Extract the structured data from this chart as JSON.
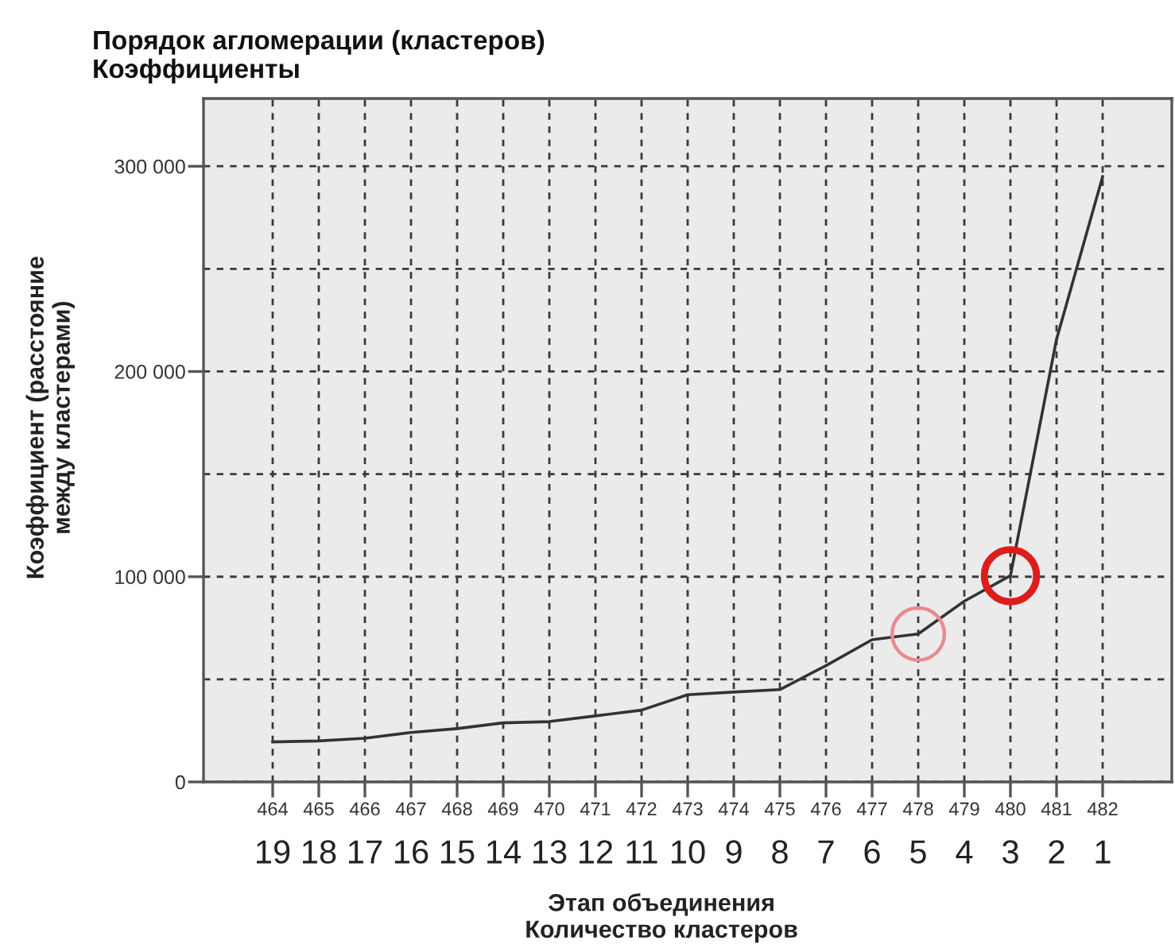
{
  "chart_data": {
    "type": "line",
    "title": "Порядок агломерации (кластеров)",
    "subtitle": "Коэффициенты",
    "xlabel": "Этап объединения",
    "x2label": "Количество кластеров",
    "ylabel": "Коэффициент (расстояние\nмежду кластерами)",
    "x": [
      464,
      465,
      466,
      467,
      468,
      469,
      470,
      471,
      472,
      473,
      474,
      475,
      476,
      477,
      478,
      479,
      480,
      481,
      482
    ],
    "series": [
      {
        "color": "#333333",
        "marker": "none",
        "values": [
          19500,
          20000,
          21300,
          24100,
          26000,
          28800,
          29400,
          32200,
          35000,
          42500,
          43800,
          45000,
          56700,
          69300,
          72100,
          88100,
          100500,
          215700,
          295000
        ]
      },
      {
        "type": "scatter",
        "marker": "circle",
        "color": "#e88a90",
        "x": [
          478
        ],
        "values": [
          72100
        ]
      },
      {
        "type": "scatter",
        "marker": "circle",
        "color": "#dd1c1c",
        "x": [
          480
        ],
        "values": [
          100500
        ]
      }
    ],
    "xlim": [
      462.5,
      483.5
    ],
    "xticks": [
      464,
      465,
      466,
      467,
      468,
      469,
      470,
      471,
      472,
      473,
      474,
      475,
      476,
      477,
      478,
      479,
      480,
      481,
      482
    ],
    "x2lim": [
      20.5,
      -0.5
    ],
    "x2ticks": [
      19,
      18,
      17,
      16,
      15,
      14,
      13,
      12,
      11,
      10,
      9,
      8,
      7,
      6,
      5,
      4,
      3,
      2,
      1
    ],
    "ylim": [
      0,
      333000
    ],
    "yticks": [
      0,
      {
        "value": 50000,
        "label": null
      },
      {
        "value": 100000,
        "label": "100 000"
      },
      {
        "value": 150000,
        "label": null
      },
      {
        "value": 200000,
        "label": "200 000"
      },
      {
        "value": 250000,
        "label": null
      },
      {
        "value": 300000,
        "label": "300 000"
      }
    ],
    "grid": true
  }
}
